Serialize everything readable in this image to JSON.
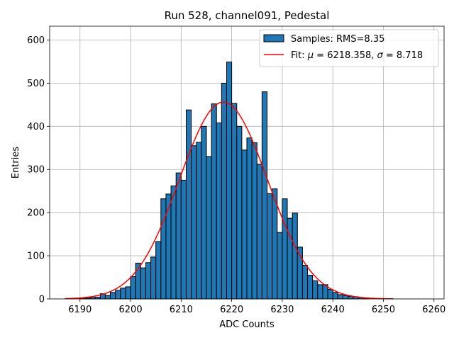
{
  "chart_data": {
    "type": "bar",
    "title": "Run 528, channel091, Pedestal",
    "xlabel": "ADC Counts",
    "ylabel": "Entries",
    "xlim": [
      6184,
      6262
    ],
    "ylim": [
      0,
      632
    ],
    "xticks": [
      6190,
      6200,
      6210,
      6220,
      6230,
      6240,
      6250,
      6260
    ],
    "yticks": [
      0,
      100,
      200,
      300,
      400,
      500,
      600
    ],
    "grid": true,
    "legend_position": "top-right",
    "bin_width": 1,
    "histogram": {
      "name": "Samples: RMS=8.35",
      "color": "#1f77b4",
      "bins": [
        6190,
        6191,
        6192,
        6193,
        6194,
        6195,
        6196,
        6197,
        6198,
        6199,
        6200,
        6201,
        6202,
        6203,
        6204,
        6205,
        6206,
        6207,
        6208,
        6209,
        6210,
        6211,
        6212,
        6213,
        6214,
        6215,
        6216,
        6217,
        6218,
        6219,
        6220,
        6221,
        6222,
        6223,
        6224,
        6225,
        6226,
        6227,
        6228,
        6229,
        6230,
        6231,
        6232,
        6233,
        6234,
        6235,
        6236,
        6237,
        6238,
        6239,
        6240,
        6241,
        6242,
        6243,
        6244,
        6245,
        6246
      ],
      "counts": [
        1,
        2,
        3,
        4,
        12,
        8,
        15,
        20,
        25,
        28,
        52,
        83,
        72,
        84,
        97,
        133,
        232,
        243,
        262,
        292,
        275,
        438,
        355,
        363,
        400,
        330,
        452,
        408,
        500,
        549,
        453,
        400,
        345,
        373,
        362,
        312,
        480,
        244,
        255,
        154,
        232,
        187,
        199,
        120,
        78,
        55,
        42,
        33,
        33,
        22,
        15,
        10,
        8,
        6,
        5,
        3,
        2
      ]
    },
    "fit": {
      "name": "Fit: μ = 6218.358, σ = 8.718",
      "legend_parts": {
        "prefix": "Fit: ",
        "mu_symbol": "μ",
        "mu_value": " = 6218.358, ",
        "sigma_symbol": "σ",
        "sigma_value": " = 8.718"
      },
      "color": "#ff0000",
      "mu": 6218.358,
      "sigma": 8.718,
      "amplitude": 456,
      "x_range": [
        6187,
        6252
      ]
    }
  }
}
